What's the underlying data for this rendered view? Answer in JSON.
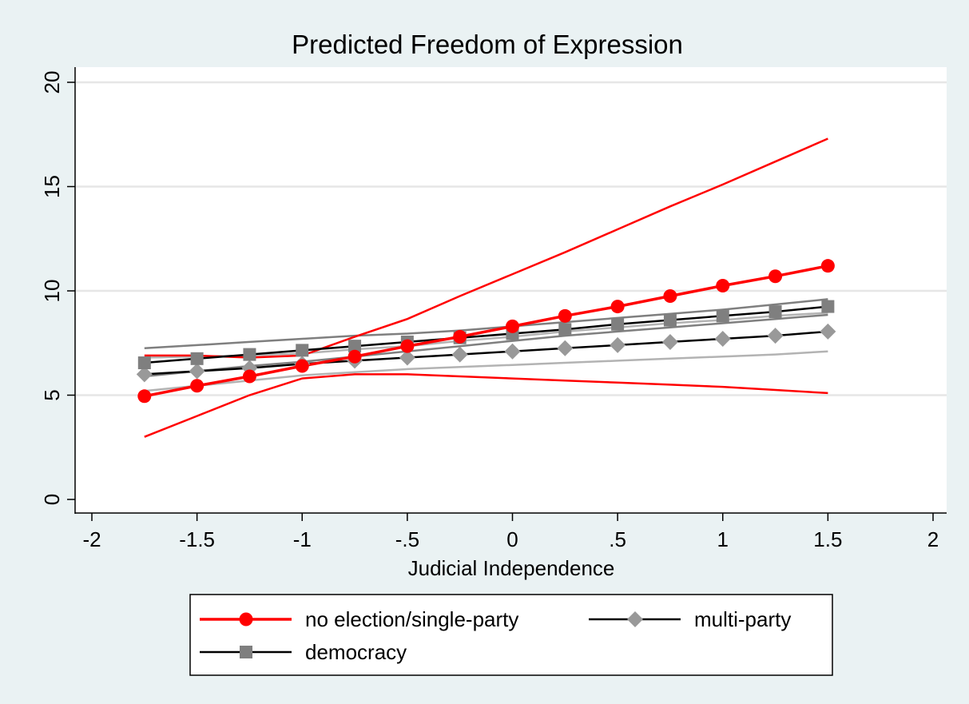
{
  "chart_data": {
    "type": "line",
    "title": "Predicted Freedom of Expression",
    "xlabel": "Judicial Independence",
    "ylabel": "",
    "xlim": [
      -2,
      2
    ],
    "ylim": [
      0,
      20
    ],
    "grid": true,
    "legend_position": "bottom",
    "x_ticks": [
      {
        "v": -2,
        "label": "-2"
      },
      {
        "v": -1.5,
        "label": "-1.5"
      },
      {
        "v": -1,
        "label": "-1"
      },
      {
        "v": -0.5,
        "label": "-.5"
      },
      {
        "v": 0,
        "label": "0"
      },
      {
        "v": 0.5,
        "label": ".5"
      },
      {
        "v": 1,
        "label": "1"
      },
      {
        "v": 1.5,
        "label": "1.5"
      },
      {
        "v": 2,
        "label": "2"
      }
    ],
    "y_ticks": [
      {
        "v": 0,
        "label": "0"
      },
      {
        "v": 5,
        "label": "5"
      },
      {
        "v": 10,
        "label": "10"
      },
      {
        "v": 15,
        "label": "15"
      },
      {
        "v": 20,
        "label": "20"
      }
    ],
    "x": [
      -1.75,
      -1.5,
      -1.25,
      -1,
      -0.75,
      -0.5,
      -0.25,
      0,
      0.25,
      0.5,
      0.75,
      1,
      1.25,
      1.5
    ],
    "series": [
      {
        "name": "no election/single-party",
        "color": "#ff0000",
        "marker": "circle",
        "values": [
          4.95,
          5.45,
          5.9,
          6.4,
          6.85,
          7.35,
          7.8,
          8.3,
          8.8,
          9.25,
          9.75,
          10.25,
          10.7,
          11.2
        ],
        "ci_upper": [
          6.9,
          6.9,
          6.8,
          6.9,
          7.8,
          8.65,
          9.75,
          10.8,
          11.85,
          12.95,
          14.05,
          15.1,
          16.2,
          17.3
        ],
        "ci_lower": [
          3.0,
          4.0,
          5.0,
          5.8,
          6.0,
          6.0,
          5.9,
          5.8,
          5.7,
          5.6,
          5.5,
          5.4,
          5.25,
          5.1
        ]
      },
      {
        "name": "multi-party",
        "color": "#000000",
        "marker_color": "#999999",
        "ci_color": "#b3b3b3",
        "marker": "diamond",
        "values": [
          6.0,
          6.15,
          6.3,
          6.5,
          6.65,
          6.8,
          6.95,
          7.1,
          7.25,
          7.4,
          7.55,
          7.7,
          7.85,
          8.05
        ],
        "ci_upper": [
          6.8,
          6.85,
          6.9,
          7.0,
          7.2,
          7.35,
          7.6,
          7.8,
          8.05,
          8.25,
          8.45,
          8.6,
          8.8,
          8.95
        ],
        "ci_lower": [
          5.2,
          5.45,
          5.7,
          5.95,
          6.1,
          6.25,
          6.35,
          6.45,
          6.55,
          6.65,
          6.75,
          6.85,
          6.95,
          7.1
        ]
      },
      {
        "name": "democracy",
        "color": "#000000",
        "marker_color": "#7f7f7f",
        "ci_color": "#7f7f7f",
        "marker": "square",
        "values": [
          6.55,
          6.75,
          6.95,
          7.15,
          7.35,
          7.55,
          7.75,
          7.95,
          8.15,
          8.4,
          8.6,
          8.8,
          9.0,
          9.25
        ],
        "ci_upper": [
          7.25,
          7.4,
          7.55,
          7.7,
          7.85,
          7.95,
          8.1,
          8.3,
          8.5,
          8.7,
          8.9,
          9.1,
          9.35,
          9.6
        ],
        "ci_lower": [
          5.9,
          6.15,
          6.4,
          6.6,
          6.85,
          7.1,
          7.35,
          7.6,
          7.85,
          8.05,
          8.25,
          8.45,
          8.65,
          8.85
        ]
      }
    ]
  }
}
